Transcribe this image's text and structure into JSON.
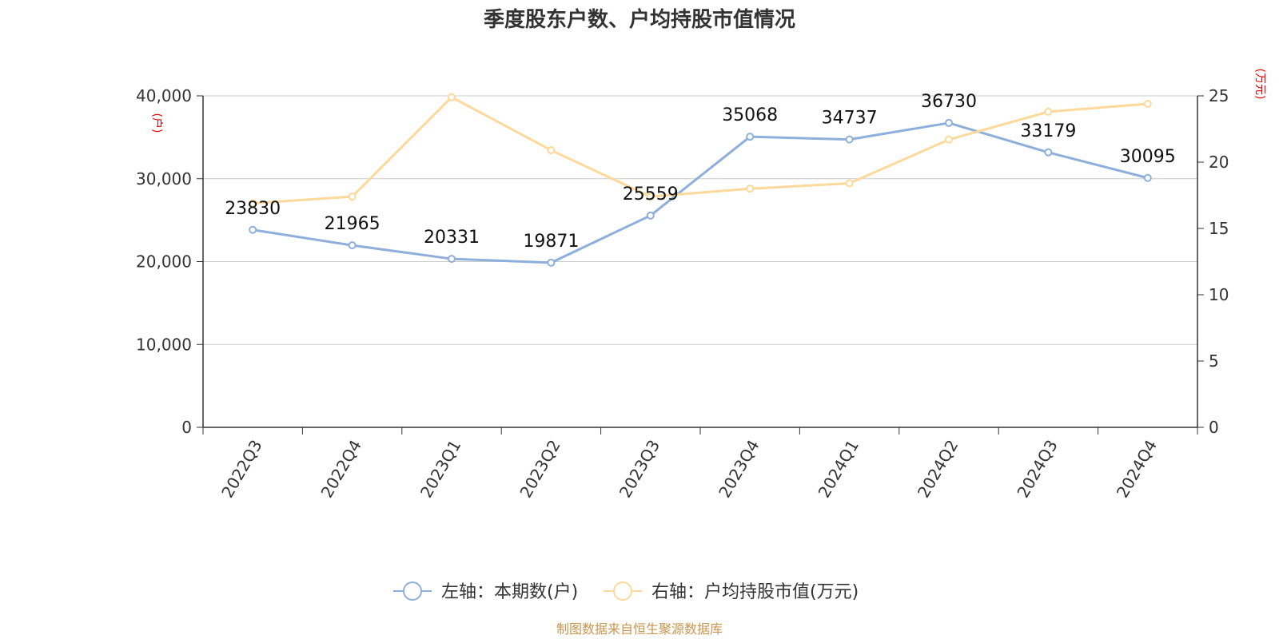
{
  "chart_data": {
    "type": "line",
    "title": "季度股东户数、户均持股市值情况",
    "categories": [
      "2022Q3",
      "2022Q4",
      "2023Q1",
      "2023Q2",
      "2023Q3",
      "2023Q4",
      "2024Q1",
      "2024Q2",
      "2024Q3",
      "2024Q4"
    ],
    "left_axis": {
      "unit": "(户)",
      "ylim": [
        0,
        40000
      ],
      "ticks": [
        "0",
        "10,000",
        "20,000",
        "30,000",
        "40,000"
      ]
    },
    "right_axis": {
      "unit": "(万元)",
      "ylim": [
        0,
        25
      ],
      "ticks": [
        "0",
        "5",
        "10",
        "15",
        "20",
        "25"
      ]
    },
    "series": [
      {
        "name": "左轴：本期数(户)",
        "axis": "left",
        "color": "#8eaedb",
        "values": [
          23830,
          21965,
          20331,
          19871,
          25559,
          35068,
          34737,
          36730,
          33179,
          30095
        ],
        "labels": [
          "23830",
          "21965",
          "20331",
          "19871",
          "25559",
          "35068",
          "34737",
          "36730",
          "33179",
          "30095"
        ]
      },
      {
        "name": "右轴：户均持股市值(万元)",
        "axis": "right",
        "color": "#fdd99b",
        "values": [
          16.9,
          17.4,
          24.9,
          20.9,
          17.4,
          18.0,
          18.4,
          21.7,
          23.8,
          24.4
        ]
      }
    ],
    "grid": true,
    "legend_position": "bottom"
  },
  "footer": {
    "source": "制图数据来自恒生聚源数据库"
  },
  "colors": {
    "grid": "#cccccc",
    "axis": "#333333",
    "unit": "#e60000",
    "source": "#c8964e"
  }
}
